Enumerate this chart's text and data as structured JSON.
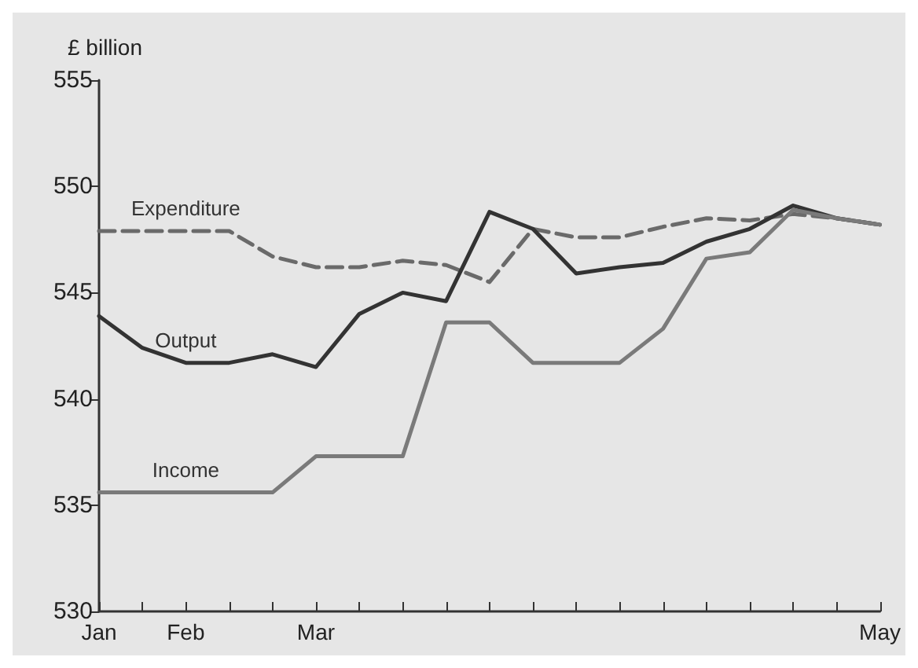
{
  "chart_data": {
    "type": "line",
    "ylabel": "£ billion",
    "categories": [
      "Jan",
      null,
      "Feb",
      null,
      null,
      "Mar",
      null,
      null,
      null,
      null,
      null,
      null,
      null,
      null,
      null,
      null,
      null,
      null,
      "May"
    ],
    "series": [
      {
        "name": "Expenditure",
        "color": "#6a6a6a",
        "line_style": "dashed",
        "values": [
          547.9,
          547.9,
          547.9,
          547.9,
          546.7,
          546.2,
          546.2,
          546.5,
          546.3,
          545.5,
          548.0,
          547.6,
          547.6,
          548.1,
          548.5,
          548.4,
          548.7,
          548.5,
          548.2
        ]
      },
      {
        "name": "Output",
        "color": "#333333",
        "line_style": "solid",
        "values": [
          543.9,
          542.4,
          541.7,
          541.7,
          542.1,
          541.5,
          544.0,
          545.0,
          544.6,
          548.8,
          548.0,
          545.9,
          546.2,
          546.4,
          547.4,
          548.0,
          549.1,
          548.5,
          548.2
        ]
      },
      {
        "name": "Income",
        "color": "#7a7a7a",
        "line_style": "solid",
        "values": [
          535.6,
          535.6,
          535.6,
          535.6,
          535.6,
          537.3,
          537.3,
          537.3,
          543.6,
          543.6,
          541.7,
          541.7,
          541.7,
          543.3,
          546.6,
          546.9,
          548.9,
          548.5,
          548.2
        ]
      }
    ],
    "ylim": [
      530,
      555
    ],
    "yticks": [
      530,
      535,
      540,
      545,
      550,
      555
    ],
    "grid": false,
    "legend": false,
    "marker": "none"
  }
}
